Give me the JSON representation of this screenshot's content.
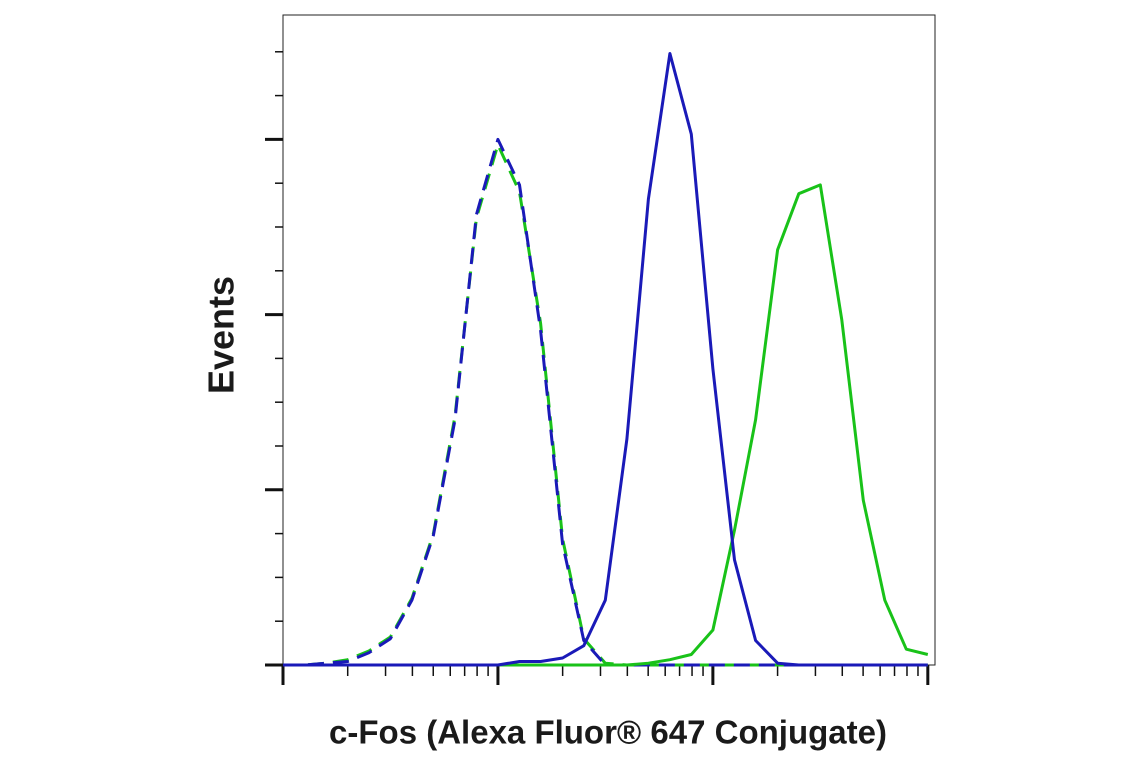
{
  "chart_data": {
    "type": "histogram-overlay",
    "xlabel": "c-Fos (Alexa Fluor® 647 Conjugate)",
    "ylabel": "Events",
    "log_x": true,
    "xlim": [
      1,
      1080
    ],
    "ylim": [
      0,
      3.71
    ],
    "xticks": [
      1,
      2,
      3,
      4,
      5,
      6,
      7,
      8,
      9,
      10,
      20,
      30,
      40,
      50,
      60,
      70,
      80,
      90,
      100,
      200,
      300,
      400,
      500,
      600,
      700,
      800,
      900,
      1000
    ],
    "yticks": [
      0,
      0.25,
      0.5,
      0.75,
      1,
      1.25,
      1.5,
      1.75,
      2,
      2.25,
      2.5,
      2.75,
      3,
      3.25,
      3.5
    ],
    "x": [
      1,
      1.26,
      1.58,
      2,
      2.51,
      3.16,
      3.98,
      5.01,
      6.31,
      7.94,
      10,
      12.6,
      15.8,
      20,
      25.1,
      31.6,
      39.8,
      50.1,
      63.1,
      79.4,
      100,
      126,
      158,
      200,
      251,
      316,
      398,
      501,
      631,
      794,
      1000
    ],
    "series": [
      {
        "color": "#19c219",
        "dashed": true,
        "values": [
          0,
          0,
          0.01,
          0.03,
          0.08,
          0.16,
          0.38,
          0.75,
          1.42,
          2.55,
          2.97,
          2.7,
          1.95,
          0.72,
          0.15,
          0.01,
          0,
          0,
          0,
          0,
          0,
          0,
          0,
          0,
          0,
          0,
          0,
          0,
          0,
          0,
          0
        ]
      },
      {
        "color": "#1a1ab8",
        "dashed": true,
        "values": [
          0,
          0,
          0.01,
          0.02,
          0.07,
          0.15,
          0.37,
          0.74,
          1.4,
          2.57,
          3.0,
          2.74,
          1.91,
          0.69,
          0.14,
          0,
          0,
          0,
          0,
          0,
          0,
          0,
          0,
          0,
          0,
          0,
          0,
          0,
          0,
          0,
          0
        ]
      },
      {
        "color": "#19c219",
        "dashed": false,
        "values": [
          0,
          0,
          0,
          0,
          0,
          0,
          0,
          0,
          0,
          0,
          0,
          0,
          0,
          0,
          0,
          0,
          0,
          0.01,
          0.03,
          0.06,
          0.2,
          0.77,
          1.4,
          2.37,
          2.69,
          2.74,
          1.97,
          0.94,
          0.37,
          0.09,
          0.06
        ]
      },
      {
        "color": "#1a1ab8",
        "dashed": false,
        "values": [
          0,
          0,
          0,
          0,
          0,
          0,
          0,
          0,
          0,
          0,
          0,
          0.02,
          0.02,
          0.04,
          0.11,
          0.37,
          1.29,
          2.66,
          3.49,
          3.03,
          1.69,
          0.6,
          0.14,
          0.01,
          0,
          0,
          0,
          0,
          0,
          0,
          0
        ]
      }
    ]
  }
}
